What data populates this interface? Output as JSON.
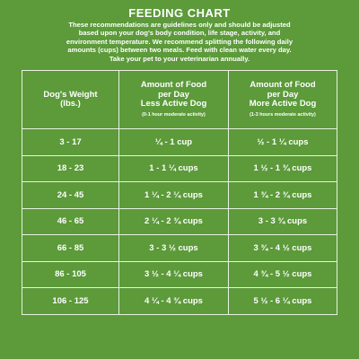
{
  "title": "FEEDING CHART",
  "intro": [
    "These recommendations are guidelines only and should be adjusted",
    "based upon your dog's body condition, life stage, activity, and",
    "environment temperature. We recommend splitting the following daily",
    "amounts (cups) between two meals. Feed with clean water every day.",
    "Take your pet to your veterinarian annually."
  ],
  "table": {
    "headers": [
      {
        "lines": [
          "Dog's Weight",
          "(lbs.)"
        ],
        "sub": ""
      },
      {
        "lines": [
          "Amount of Food",
          "per Day",
          "Less Active Dog"
        ],
        "sub": "(0-1 hour moderate activity)"
      },
      {
        "lines": [
          "Amount of Food",
          "per Day",
          "More Active Dog"
        ],
        "sub": "(1-3 hours moderate activity)"
      }
    ],
    "rows": [
      [
        "3 - 17",
        "¼ - 1 cup",
        "½ - 1 ¼ cups"
      ],
      [
        "18 - 23",
        "1 - 1 ¼ cups",
        "1 ½ - 1 ¾ cups"
      ],
      [
        "24 - 45",
        "1 ¼ - 2 ¼ cups",
        "1 ¾ - 2 ¾ cups"
      ],
      [
        "46 - 65",
        "2 ¼ - 2 ¾ cups",
        "3 - 3 ¾ cups"
      ],
      [
        "66 - 85",
        "3 - 3 ½ cups",
        "3 ¾ - 4 ½ cups"
      ],
      [
        "86 - 105",
        "3 ½ - 4 ¼ cups",
        "4 ¾ - 5 ½ cups"
      ],
      [
        "106 - 125",
        "4 ¼ - 4 ¾ cups",
        "5 ½ - 6 ¼ cups"
      ]
    ]
  }
}
